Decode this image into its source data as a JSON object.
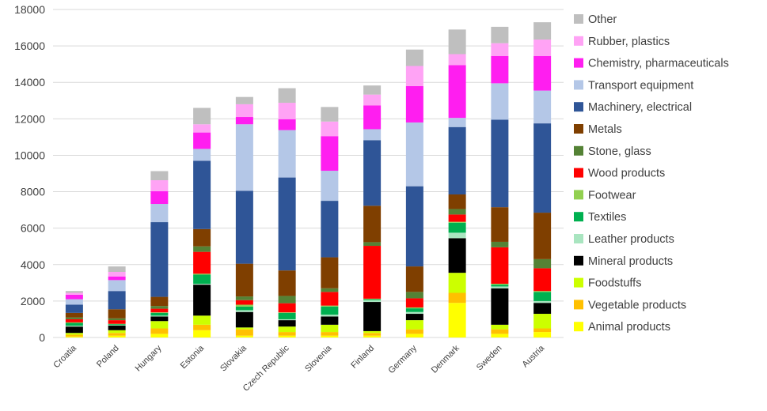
{
  "chart_data": {
    "type": "stacked-bar",
    "title": "",
    "xlabel": "",
    "ylabel": "",
    "ylim": [
      0,
      18000
    ],
    "yticks": [
      0,
      2000,
      4000,
      6000,
      8000,
      10000,
      12000,
      14000,
      16000,
      18000
    ],
    "grid": true,
    "legend_position": "right",
    "categories": [
      "Croatia",
      "Poland",
      "Hungary",
      "Estonia",
      "Slovakia",
      "Czech Republic",
      "Slovenia",
      "Finland",
      "Germany",
      "Denmark",
      "Sweden",
      "Austria"
    ],
    "series": [
      {
        "name": "Animal products",
        "color": "#ffff00",
        "values": [
          50,
          100,
          200,
          400,
          100,
          100,
          100,
          100,
          200,
          1900,
          200,
          300
        ]
      },
      {
        "name": "Vegetable products",
        "color": "#ffc000",
        "values": [
          100,
          150,
          300,
          300,
          350,
          200,
          200,
          150,
          250,
          550,
          250,
          200
        ]
      },
      {
        "name": "Foodstuffs",
        "color": "#ccff00",
        "values": [
          100,
          150,
          400,
          500,
          100,
          300,
          400,
          100,
          500,
          1100,
          250,
          800
        ]
      },
      {
        "name": "Mineral products",
        "color": "#000000",
        "values": [
          350,
          250,
          250,
          1700,
          850,
          350,
          450,
          1600,
          350,
          1900,
          2000,
          600
        ]
      },
      {
        "name": "Leather products",
        "color": "#a9e5c0",
        "values": [
          50,
          30,
          50,
          50,
          100,
          50,
          100,
          100,
          100,
          300,
          100,
          100
        ]
      },
      {
        "name": "Textiles",
        "color": "#00b050",
        "values": [
          150,
          50,
          150,
          500,
          200,
          350,
          450,
          50,
          200,
          550,
          100,
          500
        ]
      },
      {
        "name": "Footwear",
        "color": "#92d050",
        "values": [
          30,
          20,
          30,
          50,
          100,
          30,
          50,
          30,
          50,
          50,
          50,
          50
        ]
      },
      {
        "name": "Wood products",
        "color": "#ff0000",
        "values": [
          170,
          200,
          200,
          1200,
          250,
          500,
          750,
          2900,
          500,
          400,
          2000,
          1250
        ]
      },
      {
        "name": "Stone, glass",
        "color": "#548235",
        "values": [
          100,
          100,
          150,
          300,
          200,
          400,
          200,
          200,
          350,
          300,
          300,
          500
        ]
      },
      {
        "name": "Metals",
        "color": "#7f3f00",
        "values": [
          250,
          500,
          500,
          950,
          1800,
          1400,
          1700,
          2000,
          1400,
          800,
          1900,
          2550
        ]
      },
      {
        "name": "Machinery, electrical",
        "color": "#2f5597",
        "values": [
          450,
          1000,
          4100,
          3750,
          4000,
          5100,
          3100,
          3600,
          4400,
          3700,
          4800,
          4900
        ]
      },
      {
        "name": "Transport equipment",
        "color": "#b4c7e7",
        "values": [
          300,
          600,
          1000,
          650,
          3650,
          2600,
          1650,
          600,
          3500,
          500,
          2000,
          1800
        ]
      },
      {
        "name": "Chemistry, pharmaceuticals",
        "color": "#ff1ef0",
        "values": [
          250,
          200,
          700,
          900,
          400,
          600,
          1900,
          1300,
          2000,
          2900,
          1500,
          1900
        ]
      },
      {
        "name": "Rubber, plastics",
        "color": "#ffa3f5",
        "values": [
          100,
          250,
          600,
          450,
          700,
          900,
          800,
          600,
          1100,
          600,
          700,
          900
        ]
      },
      {
        "name": "Other",
        "color": "#bfbfbf",
        "values": [
          100,
          300,
          500,
          900,
          400,
          800,
          800,
          500,
          900,
          1350,
          900,
          950
        ]
      }
    ]
  }
}
